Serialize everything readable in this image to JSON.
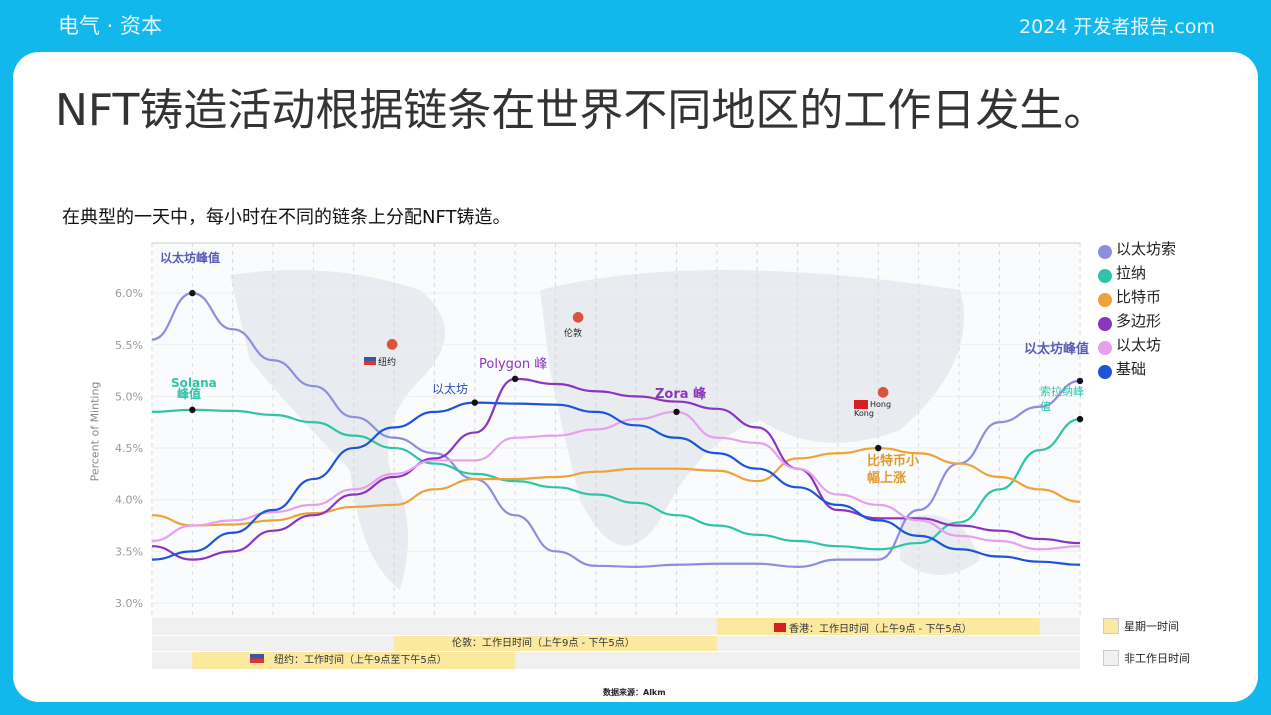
{
  "header": {
    "brand": "电气 · 资本",
    "report": "2024 开发者报告.com"
  },
  "slide": {
    "title": "NFT铸造活动根据链条在世界不同地区的工作日发生。",
    "subtitle": "在典型的一天中，每小时在不同的链条上分配NFT铸造。",
    "source": "数据来源：Alkm"
  },
  "colors": {
    "background": "#12b8ec",
    "card": "#ffffff"
  },
  "chart_data": {
    "type": "line",
    "ylabel": "Percent of Minting",
    "ylim": [
      3.0,
      6.2
    ],
    "yticks": [
      "3.0%",
      "3.5%",
      "4.0%",
      "4.5%",
      "5.0%",
      "5.5%",
      "6.0%"
    ],
    "ytick_values": [
      3.0,
      3.5,
      4.0,
      4.5,
      5.0,
      5.5,
      6.0
    ],
    "grid": true,
    "legend_placement": "right",
    "series": [
      {
        "key": "ethereum",
        "color": "#8d8ee0",
        "values": [
          5.55,
          6.0,
          5.65,
          5.35,
          5.1,
          4.8,
          4.6,
          4.45,
          4.2,
          3.85,
          3.5,
          3.36,
          3.35,
          3.37,
          3.38,
          3.38,
          3.35,
          3.42,
          3.42,
          3.9,
          4.35,
          4.75,
          4.9,
          5.15
        ]
      },
      {
        "key": "solana",
        "color": "#2fc4a8",
        "values": [
          4.85,
          4.87,
          4.86,
          4.82,
          4.75,
          4.62,
          4.5,
          4.35,
          4.25,
          4.18,
          4.12,
          4.05,
          3.97,
          3.85,
          3.75,
          3.66,
          3.6,
          3.55,
          3.52,
          3.58,
          3.78,
          4.1,
          4.48,
          4.78
        ]
      },
      {
        "key": "bitcoin",
        "color": "#eda33a",
        "values": [
          3.85,
          3.75,
          3.76,
          3.8,
          3.87,
          3.93,
          3.95,
          4.1,
          4.2,
          4.2,
          4.22,
          4.27,
          4.3,
          4.3,
          4.28,
          4.18,
          4.4,
          4.45,
          4.5,
          4.45,
          4.35,
          4.22,
          4.1,
          3.98
        ]
      },
      {
        "key": "polygon",
        "color": "#8a35c0",
        "values": [
          3.55,
          3.42,
          3.5,
          3.7,
          3.85,
          4.05,
          4.22,
          4.4,
          4.65,
          5.17,
          5.12,
          5.05,
          5.0,
          4.95,
          4.88,
          4.7,
          4.3,
          3.9,
          3.82,
          3.82,
          3.75,
          3.7,
          3.62,
          3.58
        ]
      },
      {
        "key": "zora",
        "color": "#e6a0ee",
        "values": [
          3.6,
          3.75,
          3.8,
          3.88,
          3.95,
          4.1,
          4.25,
          4.38,
          4.38,
          4.6,
          4.62,
          4.68,
          4.78,
          4.85,
          4.6,
          4.55,
          4.3,
          4.05,
          3.95,
          3.8,
          3.65,
          3.6,
          3.52,
          3.55
        ]
      },
      {
        "key": "base",
        "color": "#1d55d8",
        "values": [
          3.42,
          3.5,
          3.68,
          3.9,
          4.2,
          4.5,
          4.7,
          4.85,
          4.94,
          4.93,
          4.92,
          4.85,
          4.72,
          4.6,
          4.45,
          4.3,
          4.12,
          3.95,
          3.8,
          3.65,
          3.52,
          3.45,
          3.4,
          3.37
        ]
      }
    ],
    "markers": [
      {
        "series": "ethereum",
        "index": 1
      },
      {
        "series": "solana",
        "index": 1
      },
      {
        "series": "base",
        "index": 8
      },
      {
        "series": "polygon",
        "index": 9
      },
      {
        "series": "zora",
        "index": 13
      },
      {
        "series": "bitcoin",
        "index": 18
      },
      {
        "series": "ethereum",
        "index": 23
      },
      {
        "series": "solana",
        "index": 23
      }
    ],
    "annotations": {
      "eth_peak": "以太坊峰值",
      "solana_peak_a": "Solana",
      "solana_peak_b": "峰值",
      "base": "以太坊",
      "polygon": "Polygon 峰",
      "zora": "Zora 峰",
      "bitcoin": "比特币小幅上涨",
      "eth_peak_end": "以太坊峰值",
      "solana_peak_end": "索拉纳峰值"
    },
    "locations": {
      "ny": "纽约",
      "london": "伦敦",
      "hk": "Hong Kong"
    },
    "legend": [
      {
        "label": "以太坊索",
        "color": "#8d8ee0"
      },
      {
        "label": "拉纳",
        "color": "#2fc4a8"
      },
      {
        "label": "比特币",
        "color": "#eda33a"
      },
      {
        "label": "多边形",
        "color": "#8a35c0"
      },
      {
        "label": "以太坊",
        "color": "#e6a0ee"
      },
      {
        "label": "基础",
        "color": "#1d55d8"
      }
    ],
    "work_hours": [
      {
        "label": "香港：工作日时间（上午9点 - 下午5点）",
        "start": 14,
        "end": 22
      },
      {
        "label": "伦敦：工作日时间（上午9点 - 下午5点）",
        "start": 6,
        "end": 14
      },
      {
        "label": "纽约：工作时间（上午9点至下午5点）",
        "start": 1,
        "end": 9
      }
    ],
    "band_legend": {
      "workday": "星期一时间",
      "off": "非工作日时间",
      "workday_color": "#fbe9a0",
      "off_color": "#f0f0f0"
    }
  }
}
